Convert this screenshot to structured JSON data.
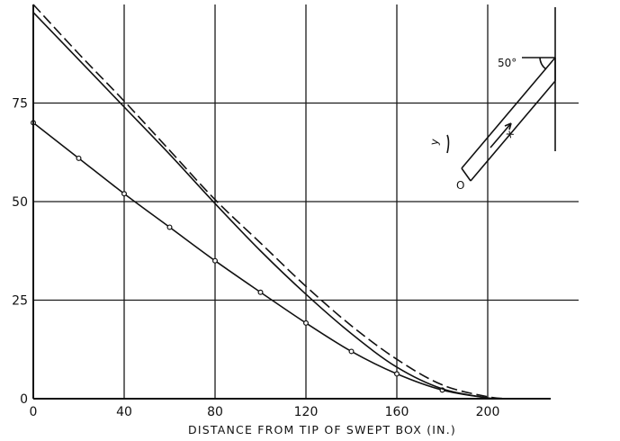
{
  "chart_data": {
    "type": "line",
    "title": "",
    "xlabel": "DISTANCE FROM TIP OF SWEPT BOX (IN.)",
    "ylabel": "",
    "xlim": [
      0,
      240
    ],
    "ylim": [
      0,
      100
    ],
    "x_ticks": [
      0,
      40,
      80,
      120,
      160,
      200
    ],
    "x_tick_labels": [
      "0",
      "40",
      "80",
      "120",
      "160",
      "200"
    ],
    "y_ticks": [
      0,
      25,
      50,
      75
    ],
    "y_tick_labels": [
      "0",
      "25",
      "50",
      "75"
    ],
    "grid": true,
    "series": [
      {
        "style": "solid-with-markers",
        "x": [
          0,
          20,
          40,
          60,
          80,
          100,
          120,
          140,
          160,
          180,
          200,
          208
        ],
        "y": [
          70,
          61,
          52,
          43.5,
          35,
          27,
          19.2,
          12,
          6.3,
          2.2,
          0.2,
          0
        ],
        "marker_x": [
          0,
          20,
          40,
          60,
          80,
          100,
          120,
          140,
          160,
          180
        ],
        "marker_y": [
          70,
          61,
          52,
          43.5,
          35,
          27,
          19.2,
          12,
          6.3,
          2.2
        ]
      },
      {
        "style": "solid",
        "x": [
          0,
          20,
          40,
          60,
          80,
          100,
          120,
          140,
          160,
          180,
          200,
          206
        ],
        "y": [
          98,
          86,
          74,
          62,
          49.5,
          37.5,
          26.5,
          16.5,
          8,
          2.5,
          0.2,
          0
        ]
      },
      {
        "style": "dashed",
        "x": [
          0,
          20,
          40,
          60,
          80,
          100,
          120,
          140,
          160,
          180,
          200,
          210
        ],
        "y": [
          100,
          87.5,
          75.5,
          63,
          50.5,
          39.5,
          28.5,
          18.5,
          10,
          3.5,
          0.5,
          0
        ]
      }
    ]
  },
  "inset": {
    "angle_label": "50°",
    "x_label": "x",
    "y_label": "y",
    "origin_label": "O"
  }
}
